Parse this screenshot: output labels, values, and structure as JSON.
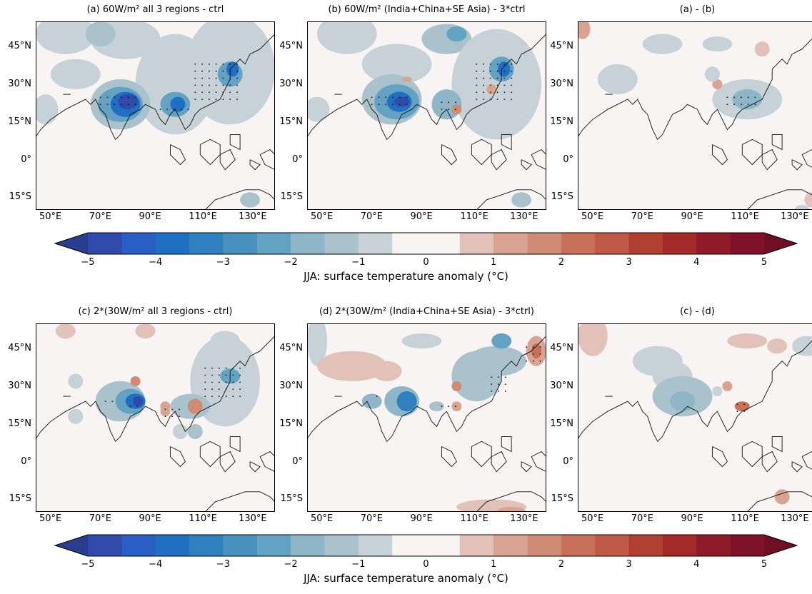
{
  "figure": {
    "rows": [
      {
        "panels": [
          {
            "title": "(a) 60W/m² all 3 regions - ctrl",
            "variant": "a"
          },
          {
            "title": "(b) 60W/m² (India+China+SE Asia) - 3*ctrl",
            "variant": "b"
          },
          {
            "title": "(a) - (b)",
            "variant": "ab"
          }
        ]
      },
      {
        "panels": [
          {
            "title": "(c) 2*(30W/m² all 3 regions - ctrl)",
            "variant": "c"
          },
          {
            "title": "(d) 2*(30W/m² (India+China+SE Asia) - 3*ctrl)",
            "variant": "d"
          },
          {
            "title": "(c) - (d)",
            "variant": "cd"
          }
        ]
      }
    ],
    "lat_ticks": [
      "45°N",
      "30°N",
      "15°N",
      "0°",
      "15°S"
    ],
    "lon_ticks": [
      "50°E",
      "70°E",
      "90°E",
      "110°E",
      "130°E"
    ],
    "colorbar": {
      "label": "JJA: surface temperature anomaly (°C)",
      "tick_labels": [
        "−5",
        "−4",
        "−3",
        "−2",
        "−1",
        "0",
        "1",
        "2",
        "3",
        "4",
        "5"
      ],
      "colors": [
        "#2a3c8f",
        "#2f4aa8",
        "#2a5ec4",
        "#1f6fc2",
        "#2f80be",
        "#4890bd",
        "#63a2c2",
        "#8eb6c8",
        "#a9c2cc",
        "#c6d2d8",
        "#f8f4f3",
        "#f8f4f3",
        "#e2c2b8",
        "#d9a391",
        "#d08b76",
        "#c9705a",
        "#be5a45",
        "#b04030",
        "#a42a2a",
        "#8f1a2a",
        "#7d1228",
        "#6e0f23"
      ]
    }
  },
  "chart_data": {
    "type": "heatmap",
    "panels": [
      "(a) 60W/m² all 3 regions - ctrl",
      "(b) 60W/m² (India+China+SE Asia) - 3*ctrl",
      "(a) - (b)",
      "(c) 2*(30W/m² all 3 regions - ctrl)",
      "(d) 2*(30W/m² (India+China+SE Asia) - 3*ctrl)",
      "(c) - (d)"
    ],
    "xlabel": "",
    "ylabel": "",
    "xlim": [
      44,
      140
    ],
    "ylim": [
      -20,
      55
    ],
    "colorbar_range": [
      -5,
      5
    ],
    "colorbar_label": "JJA: surface temperature anomaly (°C)"
  }
}
